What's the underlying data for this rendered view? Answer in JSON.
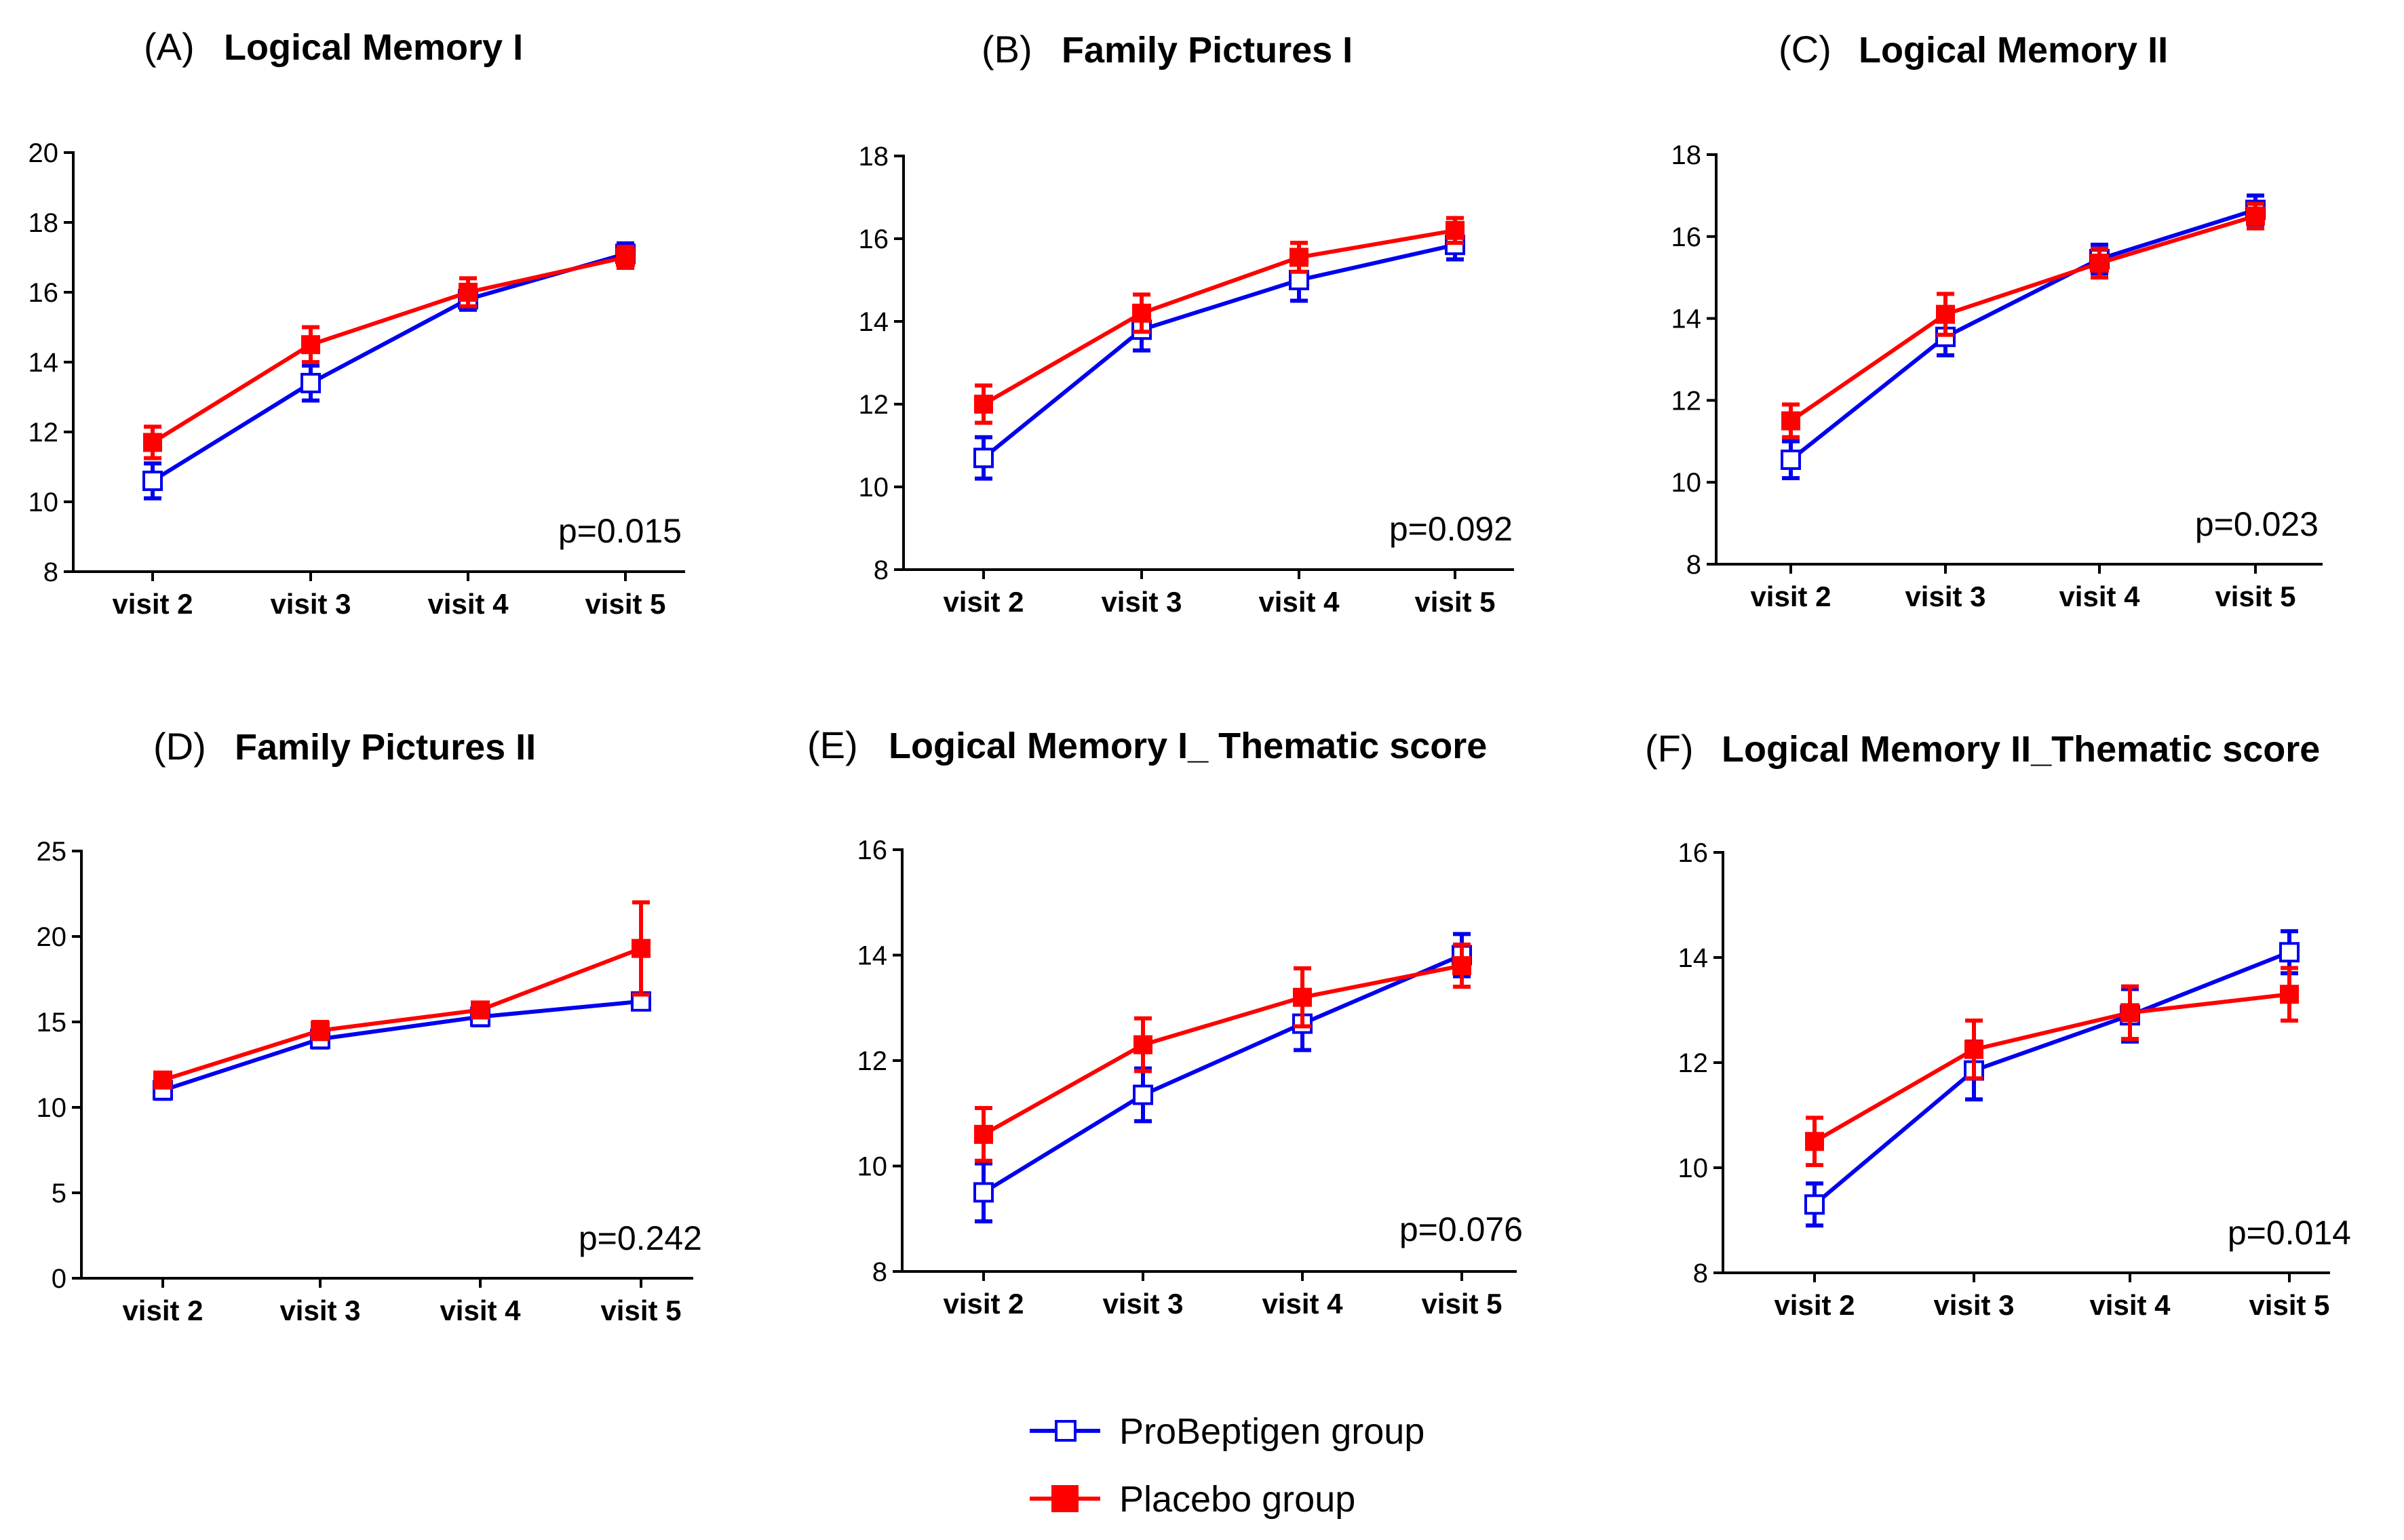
{
  "colors": {
    "probeptigen": "#0000ee",
    "placebo": "#ff0000",
    "axis": "#000000"
  },
  "legend": {
    "items": [
      {
        "name": "ProBeptigen group",
        "marker": "open-square",
        "color": "#0000ee"
      },
      {
        "name": "Placebo group",
        "marker": "filled-square",
        "color": "#ff0000"
      }
    ]
  },
  "chart_data": [
    {
      "type": "line",
      "letter": "(A)",
      "title": "Logical Memory I",
      "categories": [
        "visit 2",
        "visit 3",
        "visit 4",
        "visit 5"
      ],
      "ylim": [
        8,
        20
      ],
      "yticks": [
        8,
        10,
        12,
        14,
        16,
        18,
        20
      ],
      "pvalue": "p=0.015",
      "series": [
        {
          "name": "ProBeptigen group",
          "values": [
            10.6,
            13.4,
            15.8,
            17.1
          ],
          "errors": [
            0.5,
            0.5,
            0.3,
            0.3
          ]
        },
        {
          "name": "Placebo group",
          "values": [
            11.7,
            14.5,
            16.0,
            17.0
          ],
          "errors": [
            0.45,
            0.5,
            0.4,
            0.3
          ]
        }
      ]
    },
    {
      "type": "line",
      "letter": "(B)",
      "title": "Family Pictures I",
      "categories": [
        "visit 2",
        "visit 3",
        "visit 4",
        "visit 5"
      ],
      "ylim": [
        8,
        18
      ],
      "yticks": [
        8,
        10,
        12,
        14,
        16,
        18
      ],
      "pvalue": "p=0.092",
      "series": [
        {
          "name": "ProBeptigen group",
          "values": [
            10.7,
            13.8,
            15.0,
            15.85
          ],
          "errors": [
            0.5,
            0.5,
            0.5,
            0.35
          ]
        },
        {
          "name": "Placebo group",
          "values": [
            12.0,
            14.2,
            15.55,
            16.2
          ],
          "errors": [
            0.45,
            0.45,
            0.35,
            0.3
          ]
        }
      ]
    },
    {
      "type": "line",
      "letter": "(C)",
      "title": "Logical Memory II",
      "categories": [
        "visit 2",
        "visit 3",
        "visit 4",
        "visit 5"
      ],
      "ylim": [
        8,
        18
      ],
      "yticks": [
        8,
        10,
        12,
        14,
        16,
        18
      ],
      "pvalue": "p=0.023",
      "series": [
        {
          "name": "ProBeptigen group",
          "values": [
            10.55,
            13.55,
            15.45,
            16.65
          ],
          "errors": [
            0.45,
            0.45,
            0.35,
            0.35
          ]
        },
        {
          "name": "Placebo group",
          "values": [
            11.5,
            14.1,
            15.35,
            16.5
          ],
          "errors": [
            0.4,
            0.5,
            0.35,
            0.3
          ]
        }
      ]
    },
    {
      "type": "line",
      "letter": "(D)",
      "title": "Family Pictures II",
      "categories": [
        "visit 2",
        "visit 3",
        "visit 4",
        "visit 5"
      ],
      "ylim": [
        0,
        25
      ],
      "yticks": [
        0,
        5,
        10,
        15,
        20,
        25
      ],
      "pvalue": "p=0.242",
      "series": [
        {
          "name": "ProBeptigen group",
          "values": [
            11.0,
            14.0,
            15.3,
            16.2
          ],
          "errors": [
            0.5,
            0.5,
            0.5,
            0.3
          ]
        },
        {
          "name": "Placebo group",
          "values": [
            11.6,
            14.5,
            15.7,
            19.3
          ],
          "errors": [
            0.4,
            0.5,
            0.4,
            2.7
          ]
        }
      ]
    },
    {
      "type": "line",
      "letter": "(E)",
      "title": "Logical Memory I_ Thematic score",
      "categories": [
        "visit 2",
        "visit 3",
        "visit 4",
        "visit 5"
      ],
      "ylim": [
        8,
        16
      ],
      "yticks": [
        8,
        10,
        12,
        14,
        16
      ],
      "pvalue": "p=0.076",
      "series": [
        {
          "name": "ProBeptigen group",
          "values": [
            9.5,
            11.35,
            12.7,
            14.0
          ],
          "errors": [
            0.55,
            0.5,
            0.5,
            0.4
          ]
        },
        {
          "name": "Placebo group",
          "values": [
            10.6,
            12.3,
            13.2,
            13.8
          ],
          "errors": [
            0.5,
            0.5,
            0.55,
            0.4
          ]
        }
      ]
    },
    {
      "type": "line",
      "letter": "(F)",
      "title": "Logical Memory II_Thematic score",
      "categories": [
        "visit 2",
        "visit 3",
        "visit 4",
        "visit 5"
      ],
      "ylim": [
        8,
        16
      ],
      "yticks": [
        8,
        10,
        12,
        14,
        16
      ],
      "pvalue": "p=0.014",
      "series": [
        {
          "name": "ProBeptigen group",
          "values": [
            9.3,
            11.85,
            12.9,
            14.1
          ],
          "errors": [
            0.4,
            0.55,
            0.5,
            0.4
          ]
        },
        {
          "name": "Placebo group",
          "values": [
            10.5,
            12.25,
            12.95,
            13.3
          ],
          "errors": [
            0.45,
            0.55,
            0.5,
            0.5
          ]
        }
      ]
    }
  ]
}
